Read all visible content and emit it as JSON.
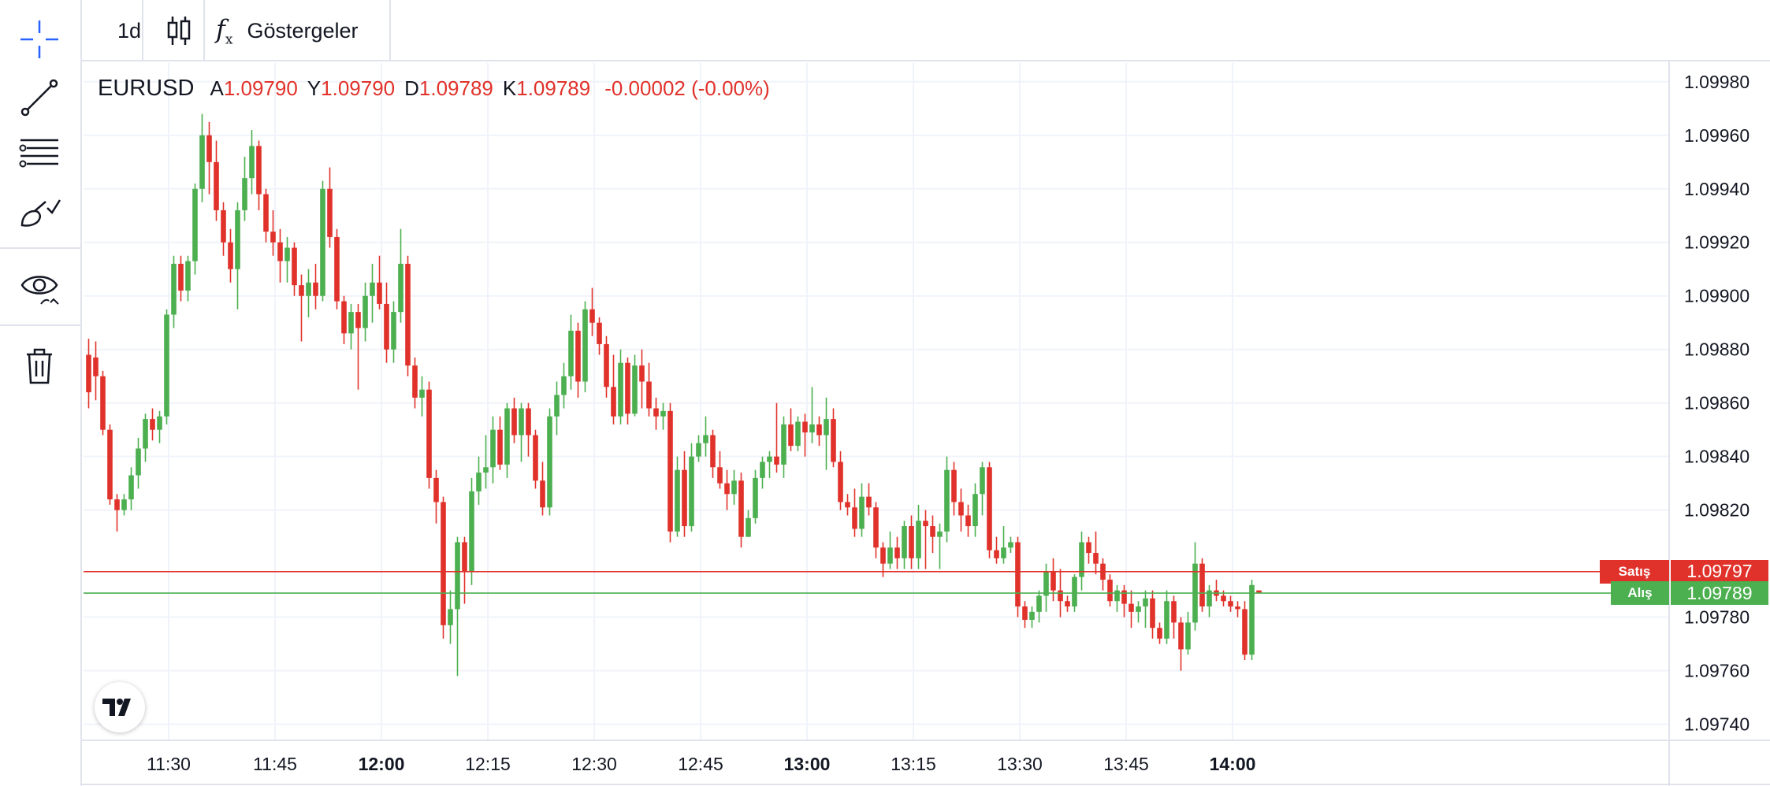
{
  "toolbar": {
    "interval": "1d",
    "indicators_label": "Göstergeler",
    "tools": [
      "crosshair-icon",
      "trend-line-icon",
      "fib-lines-icon",
      "brush-icon",
      "eye-icon",
      "trash-icon"
    ]
  },
  "legend": {
    "symbol": "EURUSD",
    "open_key": "A",
    "open": "1.09790",
    "high_key": "Y",
    "high": "1.09790",
    "low_key": "D",
    "low": "1.09789",
    "close_key": "K",
    "close": "1.09789",
    "change": "-0.00002 (-0.00%)"
  },
  "sell_line": {
    "label": "Satış",
    "price": "1.09797",
    "value": 1.09797,
    "color": "#e0322b"
  },
  "buy_line": {
    "label": "Alış",
    "price": "1.09789",
    "value": 1.09789,
    "color": "#4caf50"
  },
  "chart_data": {
    "type": "candlestick",
    "symbol": "EURUSD",
    "interval_minutes": 1,
    "ylim": [
      1.09734,
      1.09987
    ],
    "yticks": [
      "1.09980",
      "1.09960",
      "1.09940",
      "1.09920",
      "1.09900",
      "1.09880",
      "1.09860",
      "1.09840",
      "1.09820",
      "1.09780",
      "1.09760",
      "1.09740"
    ],
    "xticks": [
      {
        "label": "11:30",
        "bold": false
      },
      {
        "label": "11:45",
        "bold": false
      },
      {
        "label": "12:00",
        "bold": true
      },
      {
        "label": "12:15",
        "bold": false
      },
      {
        "label": "12:30",
        "bold": false
      },
      {
        "label": "12:45",
        "bold": false
      },
      {
        "label": "13:00",
        "bold": true
      },
      {
        "label": "13:15",
        "bold": false
      },
      {
        "label": "13:30",
        "bold": false
      },
      {
        "label": "13:45",
        "bold": false
      },
      {
        "label": "14:00",
        "bold": true
      }
    ],
    "first_time": "11:20",
    "grid": true,
    "up_color": "#4caf50",
    "down_color": "#e0322b",
    "ohlc": [
      [
        1.09878,
        1.09884,
        1.09858,
        1.09864
      ],
      [
        1.09877,
        1.09883,
        1.09861,
        1.0987
      ],
      [
        1.0987,
        1.09872,
        1.09848,
        1.0985
      ],
      [
        1.0985,
        1.09852,
        1.09822,
        1.09824
      ],
      [
        1.09824,
        1.09826,
        1.09812,
        1.0982
      ],
      [
        1.0982,
        1.09826,
        1.09818,
        1.09824
      ],
      [
        1.09824,
        1.09836,
        1.0982,
        1.09833
      ],
      [
        1.09833,
        1.09847,
        1.09828,
        1.09843
      ],
      [
        1.09843,
        1.09856,
        1.09838,
        1.09854
      ],
      [
        1.09854,
        1.09858,
        1.09846,
        1.0985
      ],
      [
        1.0985,
        1.09857,
        1.09845,
        1.09855
      ],
      [
        1.09855,
        1.09895,
        1.09852,
        1.09893
      ],
      [
        1.09893,
        1.09915,
        1.09888,
        1.09912
      ],
      [
        1.09912,
        1.09915,
        1.09898,
        1.09902
      ],
      [
        1.09902,
        1.09915,
        1.09898,
        1.09913
      ],
      [
        1.09913,
        1.09942,
        1.09908,
        1.0994
      ],
      [
        1.0994,
        1.09968,
        1.09935,
        1.0996
      ],
      [
        1.0996,
        1.09965,
        1.09938,
        1.0995
      ],
      [
        1.0995,
        1.09958,
        1.09928,
        1.09932
      ],
      [
        1.09932,
        1.09935,
        1.09915,
        1.0992
      ],
      [
        1.0992,
        1.09925,
        1.09905,
        1.0991
      ],
      [
        1.0991,
        1.09935,
        1.09895,
        1.09932
      ],
      [
        1.09932,
        1.09952,
        1.09928,
        1.09944
      ],
      [
        1.09944,
        1.09962,
        1.09938,
        1.09956
      ],
      [
        1.09956,
        1.09958,
        1.09932,
        1.09938
      ],
      [
        1.09938,
        1.0994,
        1.0992,
        1.09924
      ],
      [
        1.09924,
        1.09932,
        1.09915,
        1.0992
      ],
      [
        1.0992,
        1.09925,
        1.09905,
        1.09913
      ],
      [
        1.09913,
        1.09922,
        1.09905,
        1.09918
      ],
      [
        1.09918,
        1.0992,
        1.099,
        1.09904
      ],
      [
        1.09904,
        1.09908,
        1.09883,
        1.099
      ],
      [
        1.099,
        1.0991,
        1.09892,
        1.09905
      ],
      [
        1.09905,
        1.09912,
        1.09895,
        1.099
      ],
      [
        1.099,
        1.09943,
        1.09898,
        1.0994
      ],
      [
        1.0994,
        1.09948,
        1.09918,
        1.09922
      ],
      [
        1.09922,
        1.09925,
        1.09895,
        1.09898
      ],
      [
        1.09898,
        1.099,
        1.09882,
        1.09886
      ],
      [
        1.09886,
        1.09897,
        1.0988,
        1.09894
      ],
      [
        1.09894,
        1.09897,
        1.09865,
        1.09888
      ],
      [
        1.09888,
        1.09905,
        1.09883,
        1.099
      ],
      [
        1.099,
        1.09912,
        1.0989,
        1.09905
      ],
      [
        1.09905,
        1.09915,
        1.09895,
        1.09897
      ],
      [
        1.09897,
        1.09905,
        1.09875,
        1.0988
      ],
      [
        1.0988,
        1.09898,
        1.09875,
        1.09894
      ],
      [
        1.09894,
        1.09925,
        1.0989,
        1.09912
      ],
      [
        1.09912,
        1.09915,
        1.0987,
        1.09874
      ],
      [
        1.09874,
        1.09877,
        1.09858,
        1.09862
      ],
      [
        1.09862,
        1.0987,
        1.09855,
        1.09865
      ],
      [
        1.09865,
        1.09868,
        1.09828,
        1.09832
      ],
      [
        1.09832,
        1.09835,
        1.09815,
        1.09823
      ],
      [
        1.09823,
        1.09825,
        1.09772,
        1.09777
      ],
      [
        1.09777,
        1.0979,
        1.0977,
        1.09783
      ],
      [
        1.09783,
        1.0981,
        1.09758,
        1.09808
      ],
      [
        1.09808,
        1.0981,
        1.09785,
        1.09797
      ],
      [
        1.09797,
        1.09832,
        1.09792,
        1.09827
      ],
      [
        1.09827,
        1.0984,
        1.09822,
        1.09834
      ],
      [
        1.09834,
        1.09848,
        1.09828,
        1.09836
      ],
      [
        1.09836,
        1.09855,
        1.0983,
        1.0985
      ],
      [
        1.0985,
        1.09855,
        1.09835,
        1.09837
      ],
      [
        1.09837,
        1.0986,
        1.09832,
        1.09858
      ],
      [
        1.09858,
        1.09862,
        1.09845,
        1.09848
      ],
      [
        1.09848,
        1.0986,
        1.09838,
        1.09858
      ],
      [
        1.09858,
        1.0986,
        1.0984,
        1.09848
      ],
      [
        1.09848,
        1.0985,
        1.09828,
        1.09831
      ],
      [
        1.09831,
        1.09838,
        1.09818,
        1.09821
      ],
      [
        1.09821,
        1.09858,
        1.09818,
        1.09855
      ],
      [
        1.09855,
        1.09868,
        1.09848,
        1.09863
      ],
      [
        1.09863,
        1.09875,
        1.09858,
        1.0987
      ],
      [
        1.0987,
        1.09893,
        1.09865,
        1.09887
      ],
      [
        1.09887,
        1.0989,
        1.09862,
        1.09868
      ],
      [
        1.09868,
        1.09898,
        1.09864,
        1.09895
      ],
      [
        1.09895,
        1.09903,
        1.09885,
        1.0989
      ],
      [
        1.0989,
        1.09892,
        1.09878,
        1.09882
      ],
      [
        1.09882,
        1.09885,
        1.09862,
        1.09866
      ],
      [
        1.09866,
        1.09878,
        1.09852,
        1.09855
      ],
      [
        1.09855,
        1.0988,
        1.09852,
        1.09875
      ],
      [
        1.09875,
        1.09877,
        1.09852,
        1.09856
      ],
      [
        1.09856,
        1.09878,
        1.09855,
        1.09874
      ],
      [
        1.09874,
        1.0988,
        1.09858,
        1.09868
      ],
      [
        1.09868,
        1.09875,
        1.09855,
        1.09858
      ],
      [
        1.09858,
        1.09862,
        1.0985,
        1.09855
      ],
      [
        1.09855,
        1.0986,
        1.0985,
        1.09857
      ],
      [
        1.09857,
        1.0986,
        1.09808,
        1.09812
      ],
      [
        1.09812,
        1.0984,
        1.0981,
        1.09835
      ],
      [
        1.09835,
        1.09842,
        1.0981,
        1.09814
      ],
      [
        1.09814,
        1.09845,
        1.09812,
        1.0984
      ],
      [
        1.0984,
        1.09848,
        1.09838,
        1.09845
      ],
      [
        1.09845,
        1.09855,
        1.0984,
        1.09848
      ],
      [
        1.09848,
        1.0985,
        1.09832,
        1.09836
      ],
      [
        1.09836,
        1.09842,
        1.09828,
        1.0983
      ],
      [
        1.0983,
        1.09835,
        1.0982,
        1.09826
      ],
      [
        1.09826,
        1.09835,
        1.09822,
        1.09831
      ],
      [
        1.09831,
        1.09834,
        1.09806,
        1.0981
      ],
      [
        1.0981,
        1.0982,
        1.0981,
        1.09817
      ],
      [
        1.09817,
        1.09835,
        1.09815,
        1.09832
      ],
      [
        1.09832,
        1.0984,
        1.09828,
        1.09838
      ],
      [
        1.09838,
        1.09842,
        1.09832,
        1.0984
      ],
      [
        1.0984,
        1.0986,
        1.09834,
        1.09837
      ],
      [
        1.09837,
        1.09855,
        1.09832,
        1.09852
      ],
      [
        1.09852,
        1.09858,
        1.09842,
        1.09844
      ],
      [
        1.09844,
        1.09855,
        1.09842,
        1.09853
      ],
      [
        1.09853,
        1.09856,
        1.0984,
        1.09849
      ],
      [
        1.09849,
        1.09866,
        1.09845,
        1.09852
      ],
      [
        1.09852,
        1.09855,
        1.09844,
        1.09848
      ],
      [
        1.09848,
        1.09862,
        1.09835,
        1.09854
      ],
      [
        1.09854,
        1.09858,
        1.09836,
        1.09838
      ],
      [
        1.09838,
        1.09842,
        1.0982,
        1.09823
      ],
      [
        1.09823,
        1.09826,
        1.09818,
        1.09821
      ],
      [
        1.09821,
        1.09828,
        1.0981,
        1.09813
      ],
      [
        1.09813,
        1.0983,
        1.0981,
        1.09825
      ],
      [
        1.09825,
        1.0983,
        1.09818,
        1.09821
      ],
      [
        1.09821,
        1.09823,
        1.09802,
        1.09806
      ],
      [
        1.09806,
        1.09808,
        1.09795,
        1.098
      ],
      [
        1.098,
        1.09812,
        1.09798,
        1.09806
      ],
      [
        1.09806,
        1.0981,
        1.09798,
        1.09802
      ],
      [
        1.09802,
        1.09816,
        1.09798,
        1.09814
      ],
      [
        1.09814,
        1.09818,
        1.09798,
        1.09802
      ],
      [
        1.09802,
        1.09822,
        1.09798,
        1.09816
      ],
      [
        1.09816,
        1.0982,
        1.09798,
        1.09814
      ],
      [
        1.09814,
        1.09818,
        1.09804,
        1.0981
      ],
      [
        1.0981,
        1.09815,
        1.09798,
        1.09812
      ],
      [
        1.09812,
        1.0984,
        1.09808,
        1.09835
      ],
      [
        1.09835,
        1.09838,
        1.09818,
        1.09823
      ],
      [
        1.09823,
        1.09828,
        1.09812,
        1.09818
      ],
      [
        1.09818,
        1.09822,
        1.0981,
        1.09814
      ],
      [
        1.09814,
        1.0983,
        1.0981,
        1.09826
      ],
      [
        1.09826,
        1.09838,
        1.09818,
        1.09836
      ],
      [
        1.09836,
        1.09838,
        1.09802,
        1.09805
      ],
      [
        1.09805,
        1.0981,
        1.098,
        1.09802
      ],
      [
        1.09802,
        1.09814,
        1.098,
        1.09806
      ],
      [
        1.09806,
        1.0981,
        1.09804,
        1.09808
      ],
      [
        1.09808,
        1.0981,
        1.0978,
        1.09784
      ],
      [
        1.09784,
        1.09786,
        1.09776,
        1.09779
      ],
      [
        1.09779,
        1.09784,
        1.09776,
        1.09782
      ],
      [
        1.09782,
        1.0979,
        1.09778,
        1.09788
      ],
      [
        1.09788,
        1.098,
        1.09782,
        1.09797
      ],
      [
        1.09797,
        1.09802,
        1.09786,
        1.0979
      ],
      [
        1.0979,
        1.09798,
        1.0978,
        1.09786
      ],
      [
        1.09786,
        1.09788,
        1.09782,
        1.09784
      ],
      [
        1.09784,
        1.09796,
        1.09782,
        1.09795
      ],
      [
        1.09795,
        1.09812,
        1.0979,
        1.09808
      ],
      [
        1.09808,
        1.0981,
        1.098,
        1.09804
      ],
      [
        1.09804,
        1.09812,
        1.09796,
        1.098
      ],
      [
        1.098,
        1.09802,
        1.0979,
        1.09794
      ],
      [
        1.09794,
        1.09796,
        1.09784,
        1.09786
      ],
      [
        1.09786,
        1.09792,
        1.09782,
        1.0979
      ],
      [
        1.0979,
        1.09792,
        1.0978,
        1.09785
      ],
      [
        1.09785,
        1.0979,
        1.09776,
        1.09782
      ],
      [
        1.09782,
        1.09786,
        1.09778,
        1.09784
      ],
      [
        1.09784,
        1.0979,
        1.09776,
        1.09787
      ],
      [
        1.09787,
        1.0979,
        1.09772,
        1.09776
      ],
      [
        1.09776,
        1.09778,
        1.0977,
        1.09772
      ],
      [
        1.09772,
        1.0979,
        1.0977,
        1.09786
      ],
      [
        1.09786,
        1.09788,
        1.09772,
        1.09778
      ],
      [
        1.09778,
        1.0978,
        1.0976,
        1.09768
      ],
      [
        1.09768,
        1.09782,
        1.09766,
        1.09778
      ],
      [
        1.09778,
        1.09808,
        1.09775,
        1.098
      ],
      [
        1.098,
        1.09802,
        1.09782,
        1.09784
      ],
      [
        1.09784,
        1.09792,
        1.0978,
        1.0979
      ],
      [
        1.0979,
        1.09794,
        1.09786,
        1.09788
      ],
      [
        1.09788,
        1.0979,
        1.09784,
        1.09786
      ],
      [
        1.09786,
        1.09788,
        1.09782,
        1.09784
      ],
      [
        1.09784,
        1.09786,
        1.0978,
        1.09783
      ],
      [
        1.09783,
        1.09786,
        1.09764,
        1.09766
      ],
      [
        1.09766,
        1.09794,
        1.09764,
        1.09792
      ],
      [
        1.0979,
        1.0979,
        1.09789,
        1.09789
      ]
    ]
  }
}
